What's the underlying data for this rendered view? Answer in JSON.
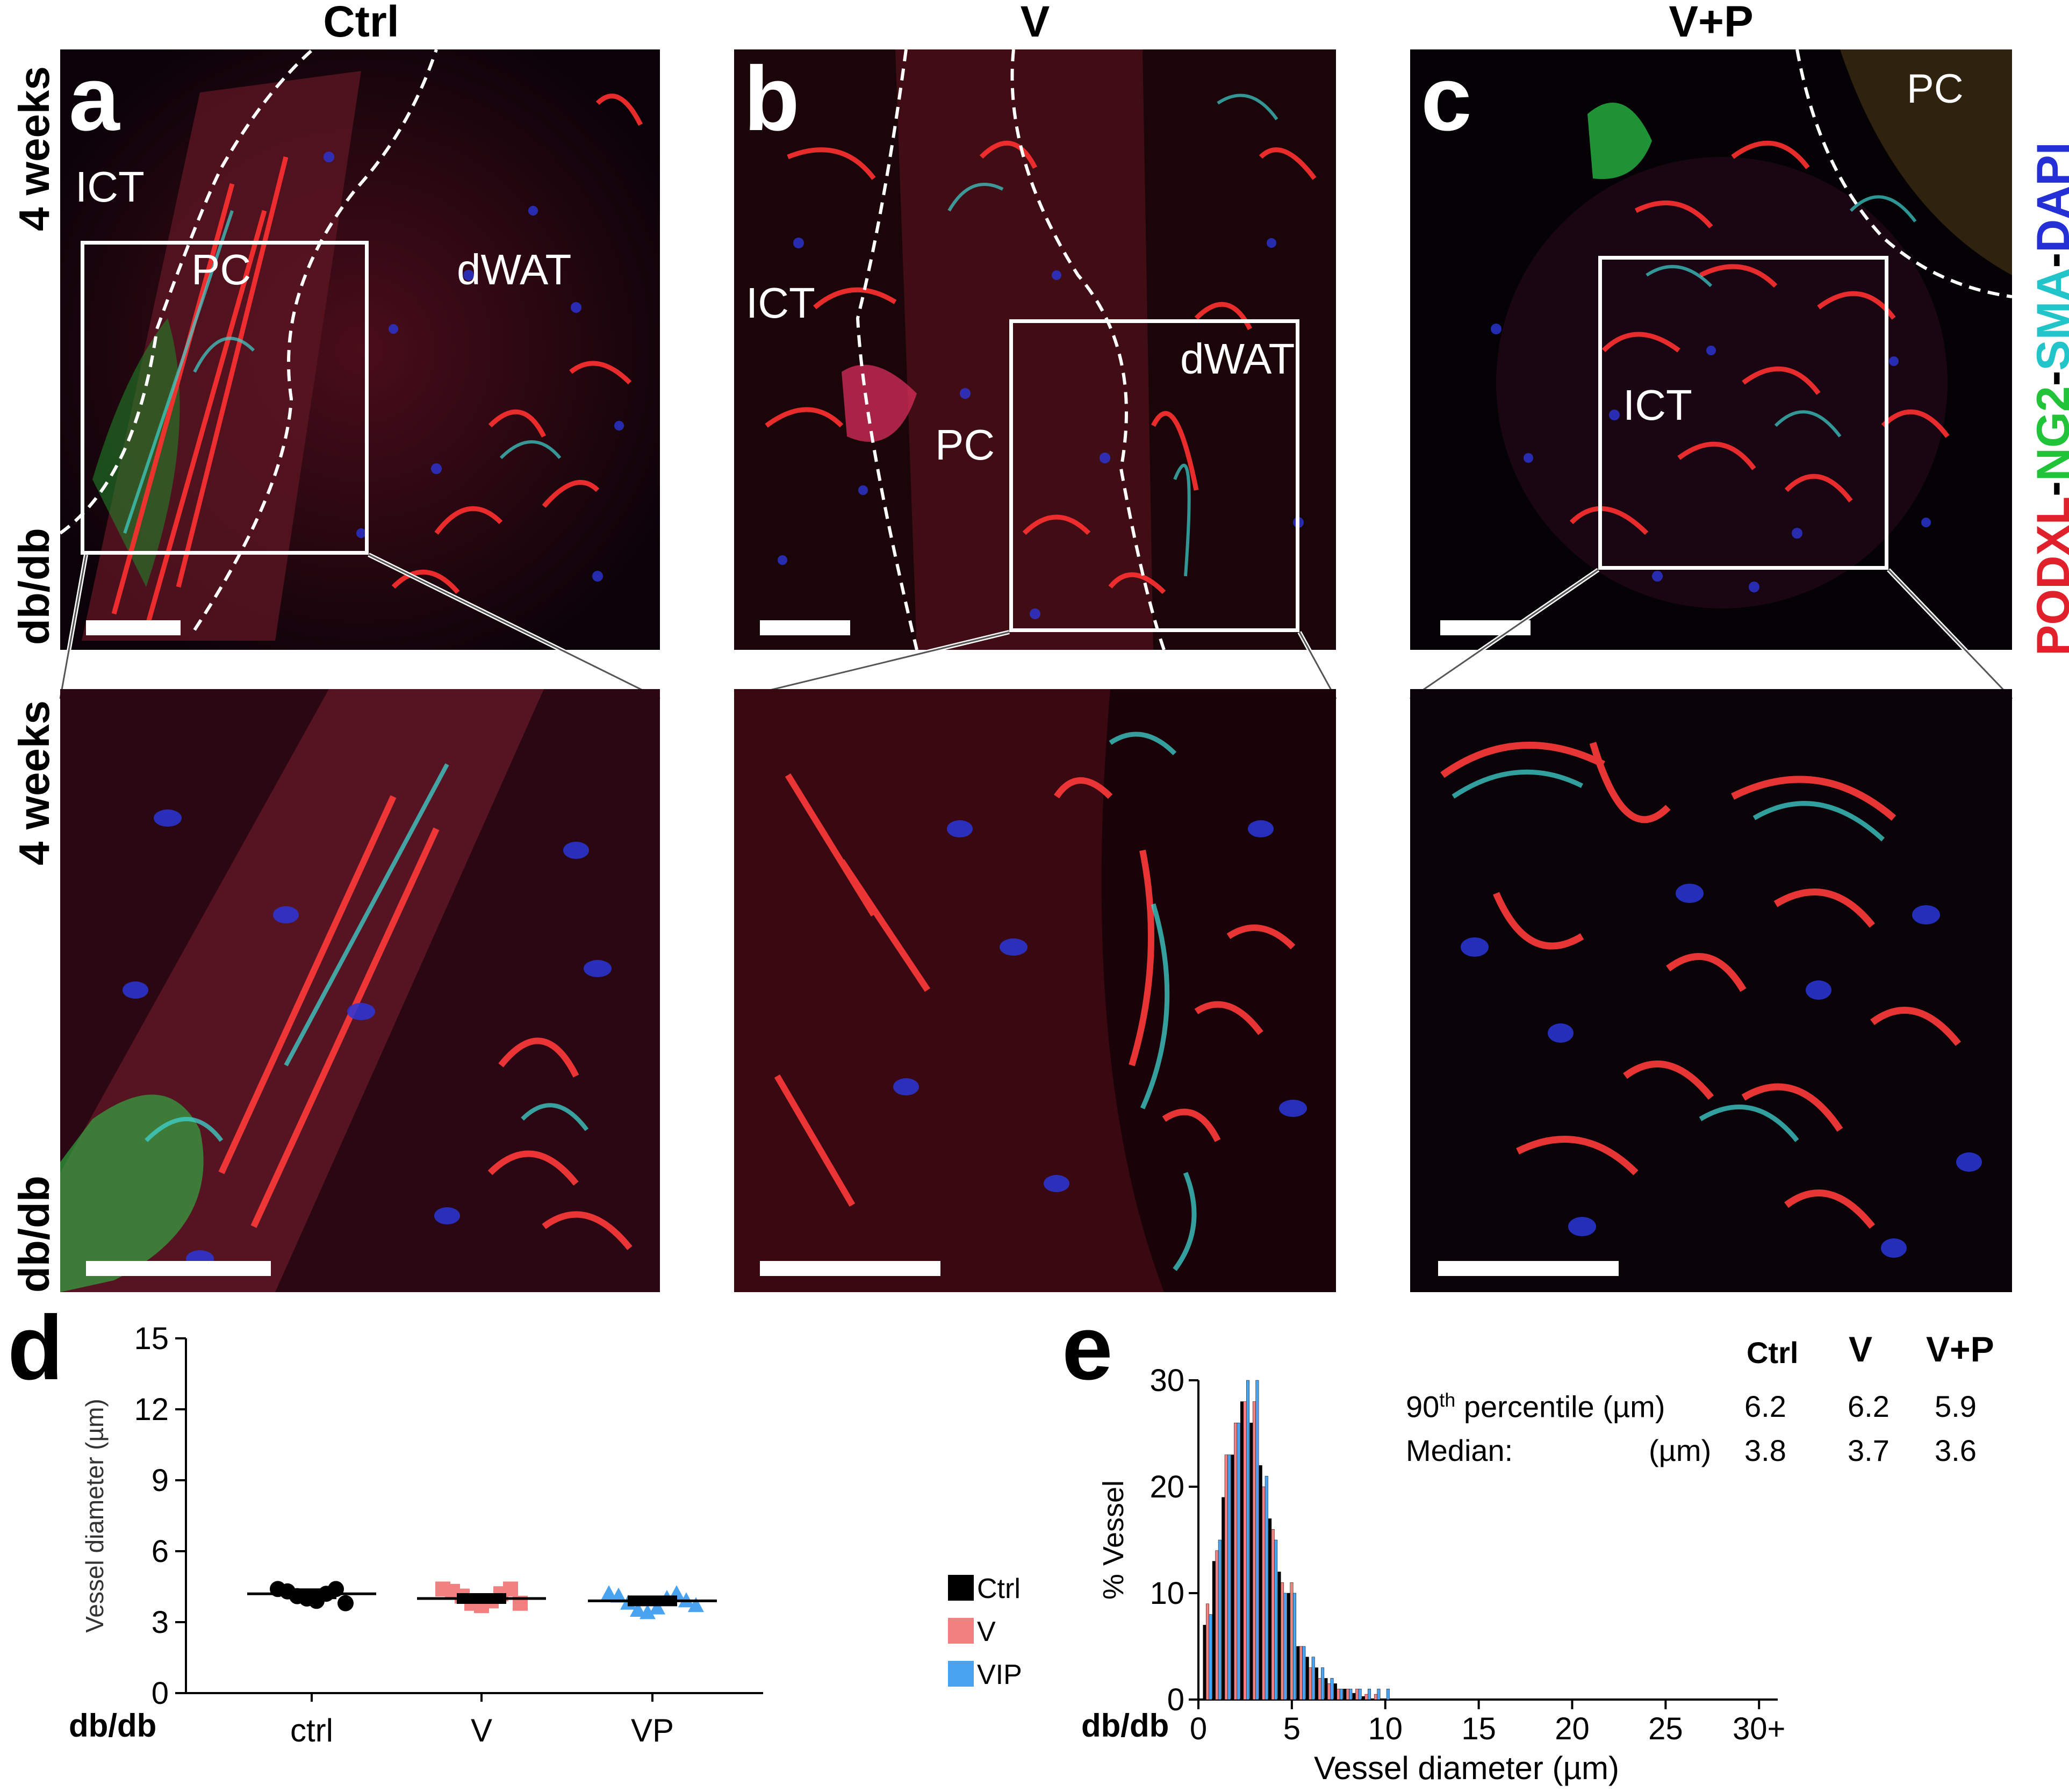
{
  "figure": {
    "column_titles": [
      "Ctrl",
      "V",
      "V+P"
    ],
    "row_label_lines": [
      "4 weeks",
      "db/db"
    ],
    "panel_letters": [
      "a",
      "b",
      "c"
    ],
    "stain": {
      "parts": [
        {
          "text": "PODXL",
          "color": "#e0202a"
        },
        {
          "text": "-",
          "color": "#000000"
        },
        {
          "text": "NG2",
          "color": "#21c438"
        },
        {
          "text": "-",
          "color": "#000000"
        },
        {
          "text": "SMA",
          "color": "#21c4c8"
        },
        {
          "text": "-",
          "color": "#000000"
        },
        {
          "text": "DAPI",
          "color": "#2430d6"
        }
      ]
    },
    "regions": {
      "a": [
        "ICT",
        "PC",
        "dWAT"
      ],
      "b": [
        "ICT",
        "PC",
        "dWAT"
      ],
      "c": [
        "PC",
        "ICT"
      ]
    },
    "colors": {
      "podxl": "#e0202a",
      "ng2": "#21c438",
      "sma": "#21c4c8",
      "dapi": "#2430d6"
    }
  },
  "chart_d": {
    "letter": "d",
    "row_label": "db/db",
    "legend": [
      {
        "label": "Ctrl",
        "color": "#000000"
      },
      {
        "label": "V",
        "color": "#f28080"
      },
      {
        "label": "VIP",
        "color": "#4aa3f0"
      }
    ]
  },
  "chart_e": {
    "letter": "e",
    "row_label": "db/db",
    "table": {
      "headers": [
        "Ctrl",
        "V",
        "V+P"
      ],
      "rows": [
        {
          "label": "90",
          "sup": "th",
          "label_rest": " percentile (µm)",
          "values": [
            "6.2",
            "6.2",
            "5.9"
          ]
        },
        {
          "label": "Median:",
          "sup": "",
          "label_rest": "(µm)",
          "values": [
            "3.8",
            "3.7",
            "3.6"
          ]
        }
      ]
    }
  },
  "chart_data": [
    {
      "type": "scatter",
      "title": "",
      "xlabel": "",
      "ylabel": "Vessel diameter (µm)",
      "categories": [
        "ctrl",
        "V",
        "VP"
      ],
      "ylim": [
        0,
        15
      ],
      "yticks": [
        0,
        3,
        6,
        9,
        12,
        15
      ],
      "grid": false,
      "series": [
        {
          "name": "Ctrl",
          "color": "#000000",
          "marker": "circle",
          "mean": 4.2,
          "values": [
            4.4,
            4.3,
            4.1,
            4.0,
            3.9,
            4.2,
            4.4,
            3.8
          ]
        },
        {
          "name": "V",
          "color": "#f28080",
          "marker": "square",
          "mean": 4.0,
          "values": [
            4.4,
            4.3,
            4.1,
            3.8,
            3.7,
            3.9,
            4.2,
            4.4,
            3.8
          ]
        },
        {
          "name": "VIP",
          "color": "#4aa3f0",
          "marker": "triangle",
          "mean": 3.9,
          "values": [
            4.2,
            4.1,
            3.8,
            3.5,
            3.4,
            3.6,
            4.0,
            4.2,
            3.9,
            3.7
          ]
        }
      ]
    },
    {
      "type": "bar",
      "title": "",
      "xlabel": "Vessel diameter (µm)",
      "ylabel": "% Vessel",
      "xlim": [
        0,
        31
      ],
      "ylim": [
        0,
        30
      ],
      "xticks": [
        0,
        5,
        10,
        15,
        20,
        25,
        30
      ],
      "xticklabels": [
        "0",
        "5",
        "10",
        "15",
        "20",
        "25",
        "30+"
      ],
      "yticks": [
        0,
        10,
        20,
        30
      ],
      "bin_width": 0.5,
      "x": [
        0.5,
        1.0,
        1.5,
        2.0,
        2.5,
        3.0,
        3.5,
        4.0,
        4.5,
        5.0,
        5.5,
        6.0,
        6.5,
        7.0,
        7.5,
        8.0,
        8.5,
        9.0,
        9.5,
        10.0
      ],
      "series": [
        {
          "name": "Ctrl",
          "color": "#000000",
          "values": [
            7,
            13,
            19,
            23,
            28,
            26,
            22,
            17,
            12,
            10,
            5,
            4,
            3,
            2,
            1.5,
            1,
            0.6,
            0.3,
            0,
            0
          ]
        },
        {
          "name": "V",
          "color": "#f28080",
          "values": [
            9,
            14,
            23,
            26,
            28,
            28,
            20,
            16,
            11,
            11,
            5,
            3,
            2,
            1.5,
            1,
            1,
            1,
            0.5,
            0.5,
            0
          ]
        },
        {
          "name": "VIP",
          "color": "#4aa3f0",
          "values": [
            8,
            15,
            23,
            26,
            30,
            30,
            21,
            15,
            10,
            10,
            5,
            4,
            3,
            2,
            1,
            1,
            1,
            1,
            1,
            1
          ]
        }
      ]
    }
  ]
}
